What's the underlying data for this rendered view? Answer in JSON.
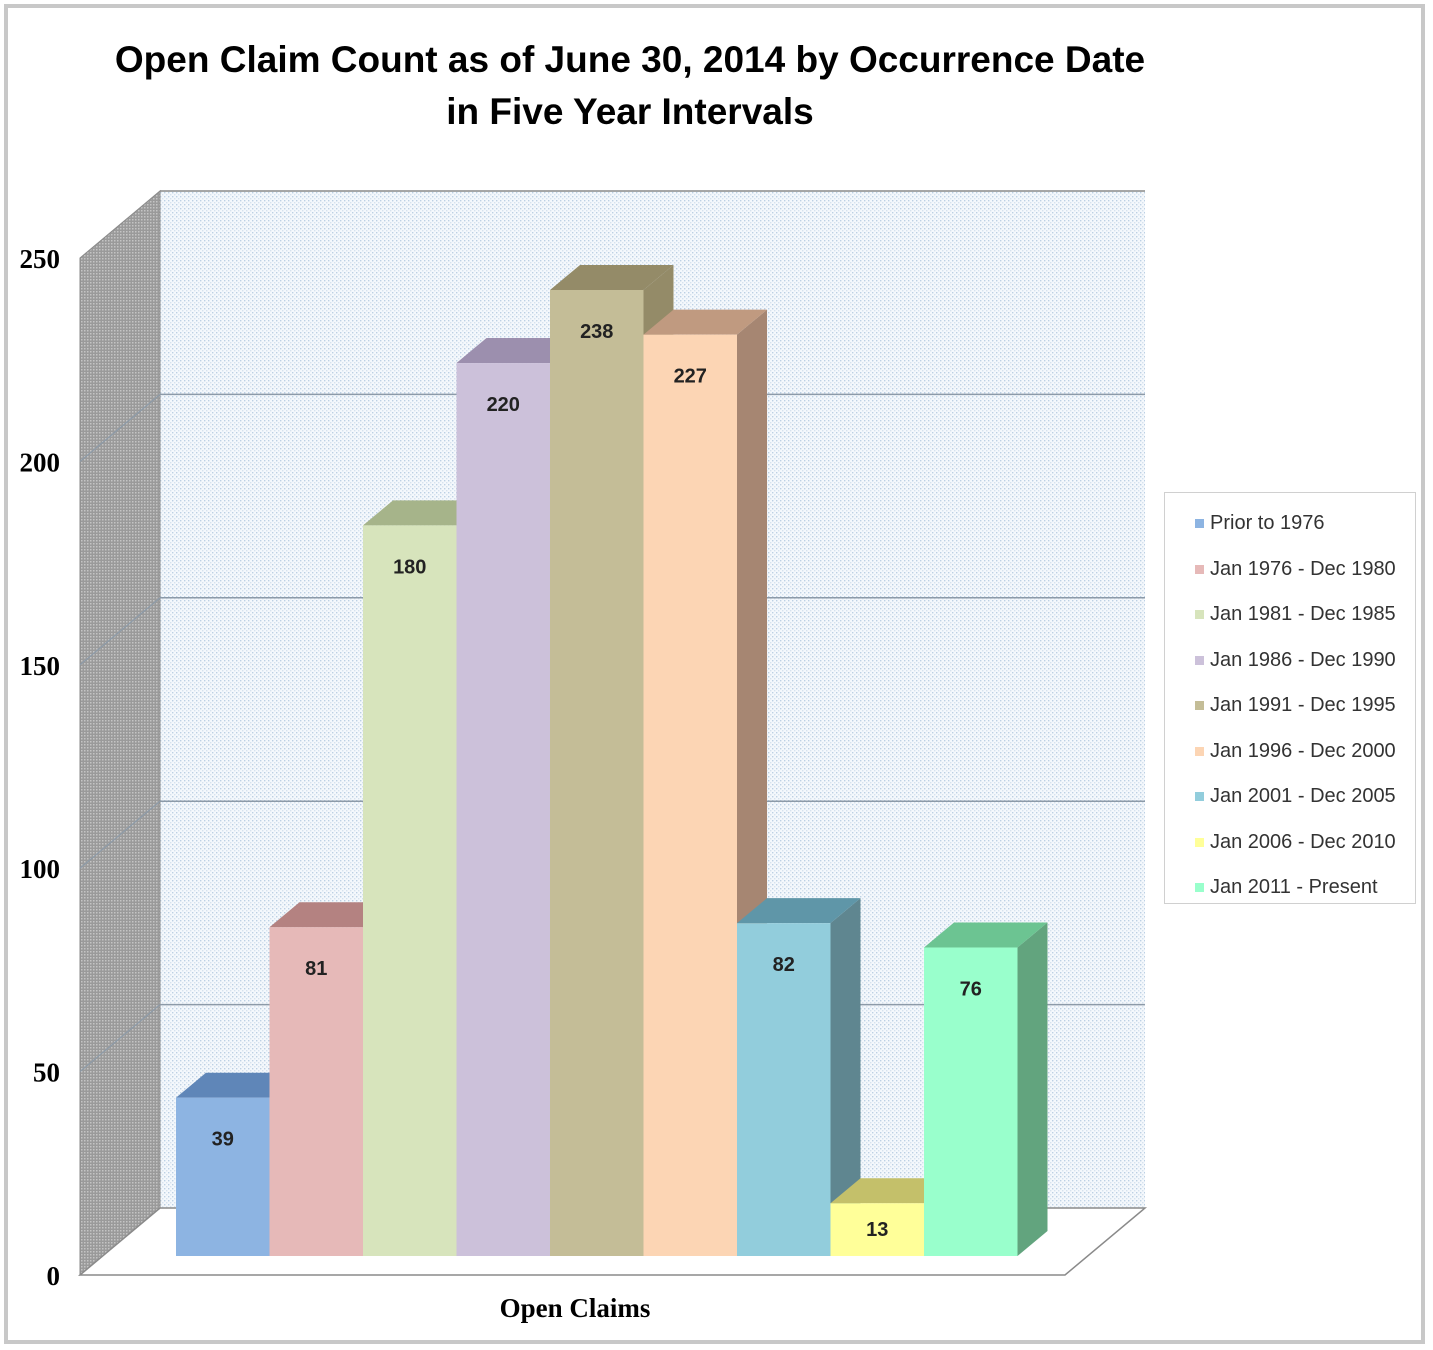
{
  "chart_data": {
    "type": "bar",
    "title": [
      "Open Claim Count as of June 30, 2014 by Occurrence Date",
      "in Five Year Intervals"
    ],
    "xlabel": "Open Claims",
    "ylabel": "",
    "ylim": [
      0,
      250
    ],
    "yticks": [
      "0",
      "50",
      "100",
      "150",
      "200",
      "250"
    ],
    "grid": true,
    "legend_position": "right",
    "three_d": true,
    "series": [
      {
        "name": "Prior to 1976",
        "value": 39,
        "label": "39",
        "color": "#8db4e2",
        "top": "#5f86b8",
        "side": "#5f86b8"
      },
      {
        "name": "Jan 1976 - Dec 1980",
        "value": 81,
        "label": "81",
        "color": "#e6b9b8",
        "top": "#b48281",
        "side": "#b48281"
      },
      {
        "name": "Jan 1981 - Dec 1985",
        "value": 180,
        "label": "180",
        "color": "#d7e4bc",
        "top": "#a6b48a",
        "side": "#a6b48a"
      },
      {
        "name": "Jan 1986 - Dec 1990",
        "value": 220,
        "label": "220",
        "color": "#ccc1da",
        "top": "#9c8fae",
        "side": "#9c8fae"
      },
      {
        "name": "Jan 1991 - Dec 1995",
        "value": 238,
        "label": "238",
        "color": "#c4bd97",
        "top": "#948b68",
        "side": "#948b68"
      },
      {
        "name": "Jan 1996 - Dec 2000",
        "value": 227,
        "label": "227",
        "color": "#fcd5b4",
        "top": "#c09a80",
        "side": "#a68672"
      },
      {
        "name": "Jan 2001 - Dec 2005",
        "value": 82,
        "label": "82",
        "color": "#92cddc",
        "top": "#5f96a8",
        "side": "#5f8690"
      },
      {
        "name": "Jan 2006 - Dec 2010",
        "value": 13,
        "label": "13",
        "color": "#ffff99",
        "top": "#c4c06a",
        "side": "#c4c06a"
      },
      {
        "name": "Jan 2011 - Present",
        "value": 76,
        "label": "76",
        "color": "#99ffcc",
        "top": "#6cc492",
        "side": "#62a47e"
      }
    ]
  }
}
